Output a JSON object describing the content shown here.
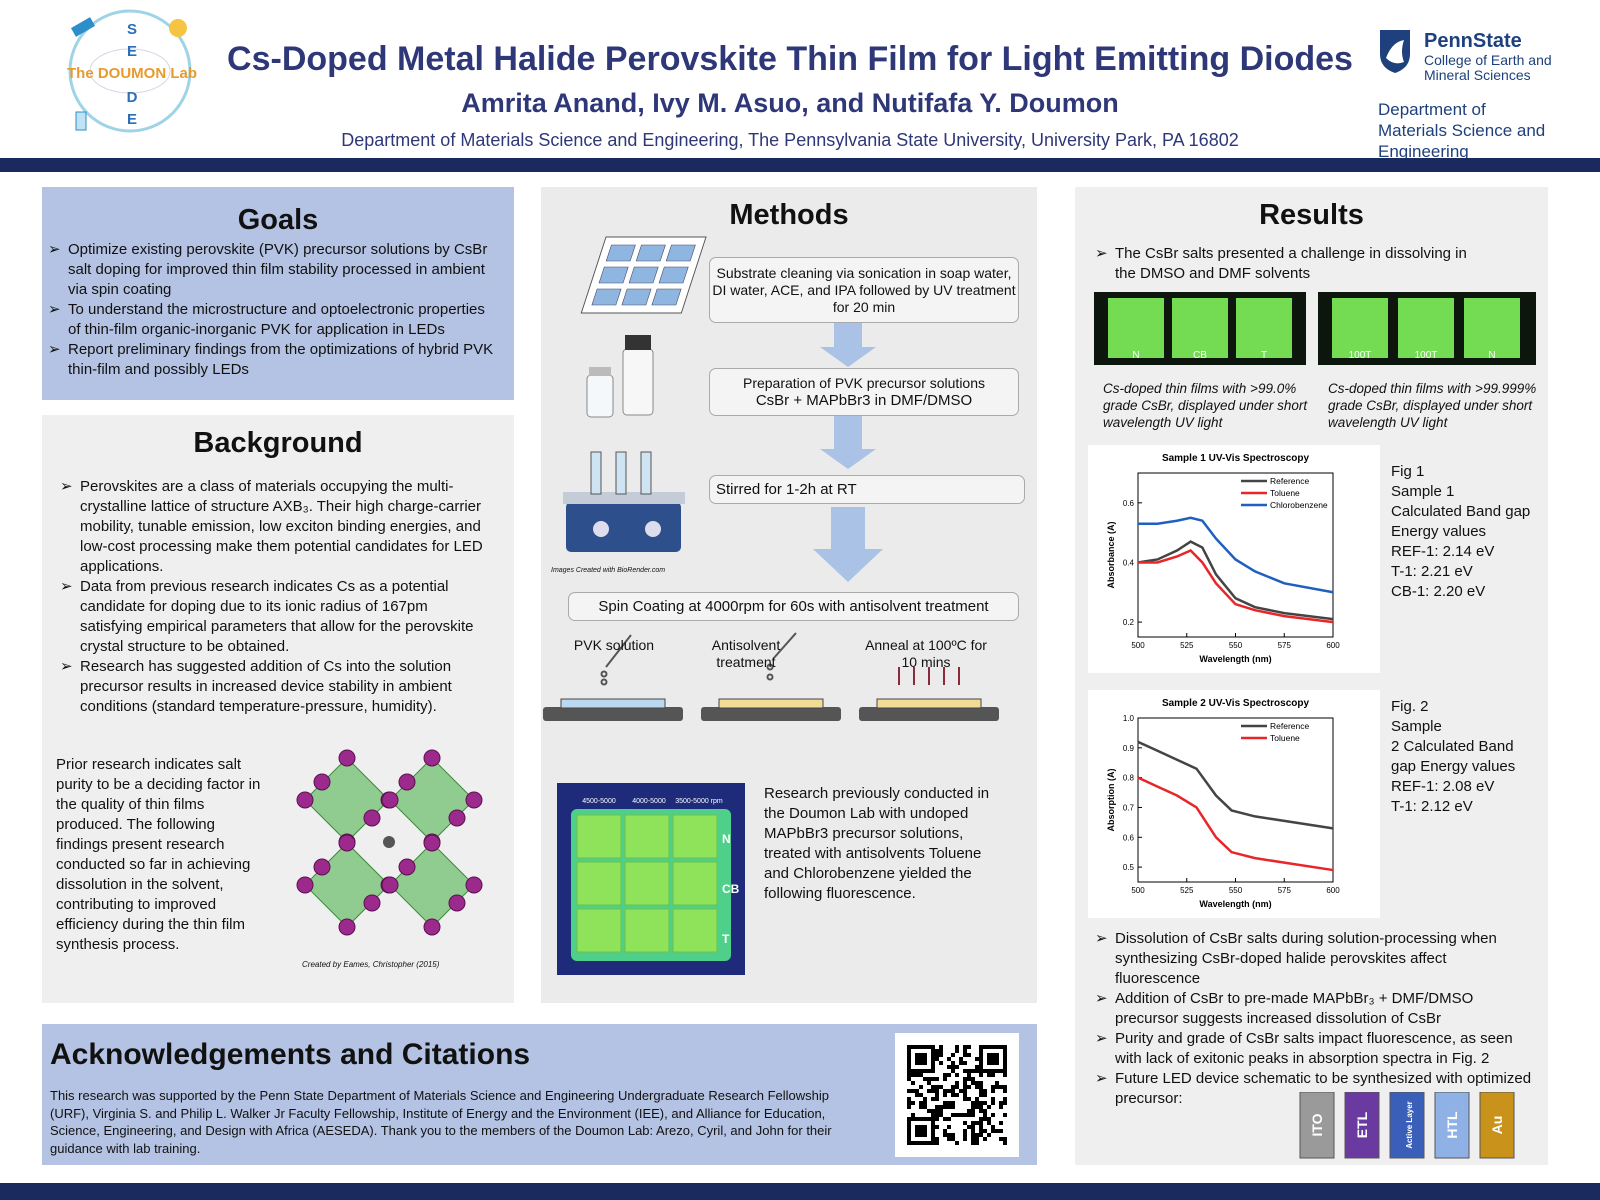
{
  "header": {
    "lab_name": "The DOUMON Lab",
    "lab_letters": [
      "S",
      "E",
      "D",
      "E"
    ],
    "title": "Cs-Doped Metal Halide Perovskite Thin Film for Light Emitting Diodes",
    "authors": "Amrita Anand, Ivy M. Asuo, and Nutifafa Y. Doumon",
    "affiliation": "Department of Materials Science and Engineering, The Pennsylvania State University, University Park, PA 16802",
    "university": "PennState",
    "college": "College of Earth and Mineral Sciences",
    "department": "Department of Materials Science and Engineering"
  },
  "goals": {
    "heading": "Goals",
    "items": [
      "Optimize existing perovskite (PVK) precursor solutions by CsBr salt doping  for improved thin film stability processed in ambient via spin coating",
      "To understand the microstructure and optoelectronic properties of thin-film organic-inorganic PVK for application in LEDs",
      "Report preliminary findings from the optimizations of hybrid PVK thin-film and possibly LEDs"
    ]
  },
  "background": {
    "heading": "Background",
    "items": [
      "Perovskites are a class of materials occupying the multi-crystalline lattice of structure AXB₃. Their high charge-carrier mobility, tunable emission, low exciton binding energies, and low-cost processing make them potential candidates for LED applications.",
      "Data from previous research indicates Cs as a potential candidate for doping due to its ionic radius of 167pm satisfying empirical parameters that allow for the perovskite crystal structure to be obtained.",
      "Research has suggested addition of Cs into the solution precursor results in increased device stability in ambient conditions (standard temperature-pressure, humidity)."
    ],
    "prior_text": "Prior research indicates salt purity to be a deciding factor in the quality of thin films produced. The following findings present research conducted so far in achieving dissolution in the solvent, contributing to improved efficiency during the thin film synthesis process.",
    "image_credit": "Created by Eames, Christopher (2015)"
  },
  "methods": {
    "heading": "Methods",
    "step1": "Substrate cleaning via sonication in soap water, DI water, ACE, and IPA followed by UV treatment for 20 min",
    "step2_title": "Preparation of PVK precursor solutions",
    "step2_formula": "CsBr + MAPbBr3 in DMF/DMSO",
    "step3": "Stirred for 1-2h at RT",
    "step4": "Spin Coating at 4000rpm for 60s with antisolvent treatment",
    "biorender_credit": "Images Created with BioRender.com",
    "stage_labels": [
      "PVK solution",
      "Antisolvent treatment",
      "Anneal at 100ºC for 10 mins"
    ],
    "plate_columns": [
      "4500-5000",
      "4000-5000",
      "3500-5000 rpm"
    ],
    "plate_rows": [
      "N",
      "CB",
      "T"
    ],
    "plate_text": "Research previously conducted in the Doumon Lab with undoped MAPbBr3 precursor solutions, treated with antisolvents Toluene and Chlorobenzene yielded the following fluorescence."
  },
  "results": {
    "heading": "Results",
    "intro": "The CsBr salts presented a challenge in dissolving in the DMSO and DMF solvents",
    "photo_a_labels": [
      "N",
      "CB",
      "T"
    ],
    "photo_a_caption": "Cs-doped thin films with >99.0% grade CsBr, displayed under short wavelength UV light",
    "photo_b_labels": [
      "100T",
      "100T",
      "N"
    ],
    "photo_b_caption": "Cs-doped thin films with >99.999% grade CsBr, displayed under short wavelength UV light",
    "fig1": {
      "lines": [
        "Fig 1",
        "Sample 1",
        "Calculated Band gap Energy values",
        "REF-1: 2.14 eV",
        "T-1: 2.21 eV",
        "CB-1: 2.20 eV"
      ],
      "chart": {
        "type": "line",
        "title": "Sample 1 UV-Vis Spectroscopy",
        "x_label": "Wavelength (nm)",
        "y_label": "Absorbance (A)",
        "x": [
          500,
          510,
          520,
          527,
          533,
          540,
          550,
          560,
          575,
          600
        ],
        "xlim": [
          500,
          600
        ],
        "xticks": [
          500,
          525,
          550,
          575,
          600
        ],
        "ylim": [
          0.15,
          0.7
        ],
        "yticks": [
          0.2,
          0.4,
          0.6
        ],
        "series": [
          {
            "name": "Reference",
            "color": "#444444",
            "values": [
              0.4,
              0.41,
              0.44,
              0.47,
              0.45,
              0.36,
              0.28,
              0.25,
              0.23,
              0.21
            ]
          },
          {
            "name": "Toluene",
            "color": "#e8262a",
            "values": [
              0.4,
              0.4,
              0.42,
              0.44,
              0.4,
              0.33,
              0.26,
              0.24,
              0.22,
              0.2
            ]
          },
          {
            "name": "Chlorobenzene",
            "color": "#1f5fbf",
            "values": [
              0.53,
              0.53,
              0.54,
              0.55,
              0.54,
              0.48,
              0.41,
              0.37,
              0.33,
              0.3
            ]
          }
        ]
      }
    },
    "fig2": {
      "lines": [
        "Fig. 2",
        "Sample",
        "2  Calculated Band gap Energy values",
        "REF-1: 2.08 eV",
        "T-1: 2.12 eV"
      ],
      "chart": {
        "type": "line",
        "title": "Sample 2 UV-Vis Spectroscopy",
        "x_label": "Wavelength (nm)",
        "y_label": "Absorption (A)",
        "x": [
          500,
          510,
          520,
          530,
          540,
          548,
          560,
          575,
          600
        ],
        "xlim": [
          500,
          600
        ],
        "xticks": [
          500,
          525,
          550,
          575,
          600
        ],
        "ylim": [
          0.45,
          1.0
        ],
        "yticks": [
          0.5,
          0.6,
          0.7,
          0.8,
          0.9,
          {
            "value": 1,
            "label": "1.0"
          }
        ],
        "series": [
          {
            "name": "Reference",
            "color": "#444444",
            "values": [
              0.92,
              0.89,
              0.86,
              0.83,
              0.74,
              0.69,
              0.67,
              0.655,
              0.63
            ]
          },
          {
            "name": "Toluene",
            "color": "#e8262a",
            "values": [
              0.8,
              0.77,
              0.74,
              0.7,
              0.6,
              0.55,
              0.53,
              0.515,
              0.49
            ]
          }
        ]
      }
    },
    "findings": [
      "Dissolution of CsBr salts during solution-processing when synthesizing CsBr-doped halide perovskites affect fluorescence",
      "Addition of CsBr to pre-made MAPbBr₃ + DMF/DMSO precursor suggests increased dissolution of CsBr",
      "Purity and grade of CsBr salts impact fluorescence, as seen with lack of exitonic peaks in absorption spectra in Fig. 2",
      "Future LED device schematic to be synthesized with optimized precursor:"
    ],
    "layers": [
      "ITO",
      "ETL",
      "Active Layer",
      "HTL",
      "Au"
    ]
  },
  "acknowledgements": {
    "heading": "Acknowledgements and Citations",
    "text": "This research was supported by the Penn State Department of Materials Science and Engineering Undergraduate Research Fellowship (URF), Virginia S. and Philip L. Walker Jr Faculty Fellowship, Institute of Energy and the Environment (IEE), and Alliance for Education, Science, Engineering, and Design with Africa (AESEDA). Thank you to the members of the Doumon Lab: Arezo, Cyril, and John for their guidance with lab training."
  }
}
